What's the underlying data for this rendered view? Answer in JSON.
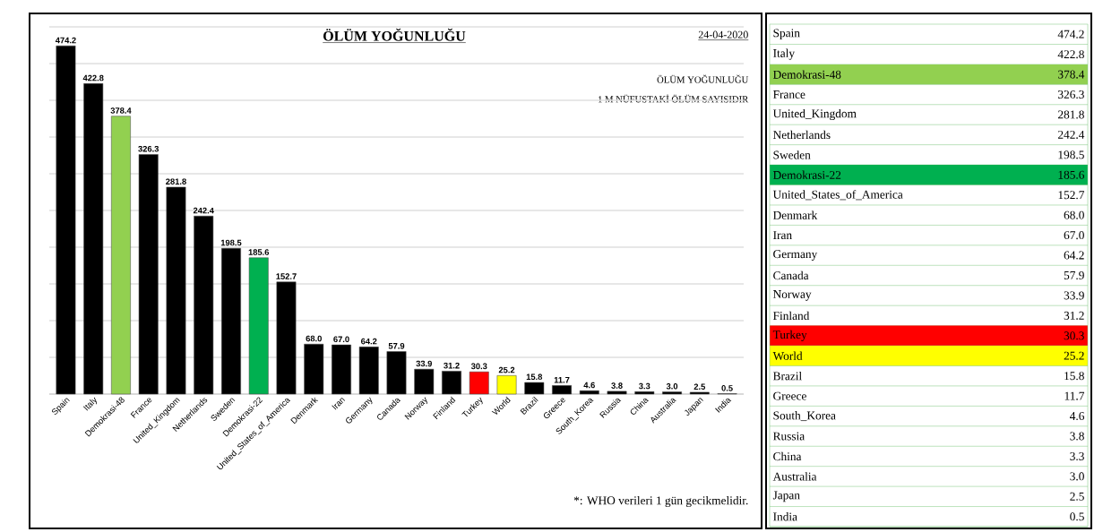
{
  "chart_data": {
    "type": "bar",
    "title": "ÖLÜM YOĞUNLUĞU",
    "subtitle": "24-04-2020",
    "annotations": [
      "ÖLÜM YOĞUNLUĞU",
      "1 M NÜFUSTAKİ ÖLÜM SAYISIDIR",
      "*: WHO verileri  1 gün  gecikmelidir."
    ],
    "categories": [
      "Spain",
      "Italy",
      "Demokrasi-48",
      "France",
      "United_Kingdom",
      "Netherlands",
      "Sweden",
      "Demokrasi-22",
      "United_States_of_America",
      "Denmark",
      "Iran",
      "Germany",
      "Canada",
      "Norway",
      "Finland",
      "Turkey",
      "World",
      "Brazil",
      "Greece",
      "South_Korea",
      "Russia",
      "China",
      "Australia",
      "Japan",
      "India"
    ],
    "values": [
      474.2,
      422.8,
      378.4,
      326.3,
      281.8,
      242.4,
      198.5,
      185.6,
      152.7,
      68.0,
      67.0,
      64.2,
      57.9,
      33.9,
      31.2,
      30.3,
      25.2,
      15.8,
      11.7,
      4.6,
      3.8,
      3.3,
      3.0,
      2.5,
      0.5
    ],
    "value_labels": [
      "474.2",
      "422.8",
      "378.4",
      "326.3",
      "281.8",
      "242.4",
      "198.5",
      "185.6",
      "152.7",
      "68.0",
      "67.0",
      "64.2",
      "57.9",
      "33.9",
      "31.2",
      "30.3",
      "25.2",
      "15.8",
      "11.7",
      "4.6",
      "3.8",
      "3.3",
      "3.0",
      "2.5",
      "0.5"
    ],
    "colors": [
      "#000000",
      "#000000",
      "#92d050",
      "#000000",
      "#000000",
      "#000000",
      "#000000",
      "#00b050",
      "#000000",
      "#000000",
      "#000000",
      "#000000",
      "#000000",
      "#000000",
      "#000000",
      "#ff0000",
      "#ffff00",
      "#000000",
      "#000000",
      "#000000",
      "#000000",
      "#000000",
      "#000000",
      "#000000",
      "#000000"
    ],
    "ylim": [
      0,
      500
    ],
    "yticks": [
      {
        "value": 0,
        "label": null
      },
      {
        "value": 50,
        "label": null
      },
      {
        "value": 100,
        "label": null
      },
      {
        "value": 150,
        "label": null
      },
      {
        "value": 200,
        "label": null
      },
      {
        "value": 250,
        "label": null
      },
      {
        "value": 300,
        "label": null
      },
      {
        "value": 350,
        "label": null
      },
      {
        "value": 400,
        "label": null
      },
      {
        "value": 450,
        "label": null
      },
      {
        "value": 500,
        "label": null
      }
    ],
    "tick_labels": "x",
    "grid": "y"
  }
}
